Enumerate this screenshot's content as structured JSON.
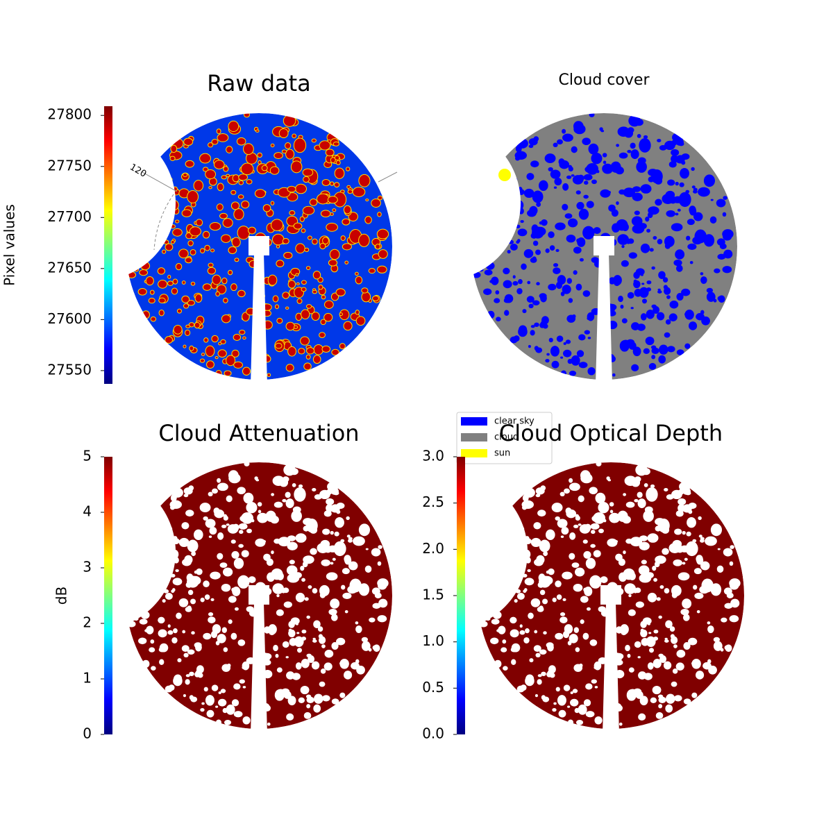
{
  "chart_data": [
    {
      "type": "image",
      "title": "Raw data",
      "ylabel": "Pixel values",
      "ylim": [
        27537,
        27809
      ],
      "yticks": [
        27550,
        27600,
        27650,
        27700,
        27750,
        27800
      ],
      "annotation": "120"
    },
    {
      "type": "image",
      "title": "Cloud cover",
      "series": [
        {
          "name": "clear sky",
          "color": "#0000ff"
        },
        {
          "name": "cloud",
          "color": "#808080"
        },
        {
          "name": "sun",
          "color": "#ffff00"
        }
      ]
    },
    {
      "type": "image",
      "title": "Cloud Attenuation",
      "ylabel": "dB",
      "ylim": [
        0,
        5
      ],
      "yticks": [
        0,
        1,
        2,
        3,
        4,
        5
      ]
    },
    {
      "type": "image",
      "title": "Cloud Optical Depth",
      "ylim": [
        0,
        3
      ],
      "yticks": [
        {
          "value": 0,
          "label": "0.0"
        },
        0.5,
        {
          "value": 1,
          "label": "1.0"
        },
        1.5,
        {
          "value": 2,
          "label": "2.0"
        },
        2.5,
        {
          "value": 3,
          "label": "3.0"
        }
      ]
    }
  ]
}
